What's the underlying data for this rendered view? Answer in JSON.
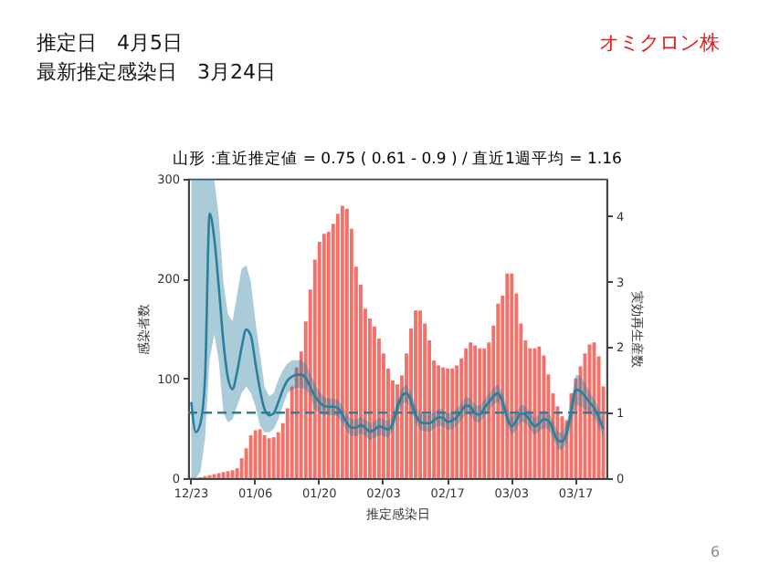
{
  "chart_data": {
    "type": "bar",
    "title": "山形 :直近推定値 = 0.75 ( 0.61 - 0.9 ) / 直近1週平均 = 1.16",
    "xlabel": "推定感染日",
    "ylabel": "感染者数",
    "y2label": "実効再生産数",
    "annotations": [
      "推定日　4月5日",
      "最新推定感染日　3月24日",
      "オミクロン株",
      "6"
    ],
    "categories": [
      "12/23",
      null,
      null,
      null,
      null,
      null,
      null,
      null,
      null,
      null,
      null,
      null,
      null,
      null,
      "01/06",
      null,
      null,
      null,
      null,
      null,
      null,
      null,
      null,
      null,
      null,
      null,
      null,
      null,
      "01/20",
      null,
      null,
      null,
      null,
      null,
      null,
      null,
      null,
      null,
      null,
      null,
      null,
      null,
      "02/03",
      null,
      null,
      null,
      null,
      null,
      null,
      null,
      null,
      null,
      null,
      null,
      null,
      null,
      "02/17",
      null,
      null,
      null,
      null,
      null,
      null,
      null,
      null,
      null,
      null,
      null,
      null,
      null,
      "03/03",
      null,
      null,
      null,
      null,
      null,
      null,
      null,
      null,
      null,
      null,
      null,
      null,
      null,
      "03/17",
      null,
      null,
      null,
      null,
      null,
      null
    ],
    "ylim": [
      0,
      300
    ],
    "yticks": [
      0,
      100,
      200,
      300
    ],
    "y2lim": [
      0,
      4.57
    ],
    "y2ticks": [
      0,
      1,
      2,
      3,
      4
    ],
    "series": [
      {
        "color": "#f4716a",
        "values": [
          0,
          0,
          1,
          2,
          3,
          4,
          5,
          6,
          7,
          8,
          10,
          20,
          30,
          43,
          48,
          49,
          43,
          40,
          41,
          46,
          55,
          70,
          92,
          111,
          127,
          157,
          189,
          219,
          237,
          245,
          247,
          255,
          265,
          273,
          270,
          250,
          212,
          194,
          170,
          160,
          152,
          140,
          125,
          110,
          98,
          94,
          103,
          125,
          150,
          168,
          168,
          155,
          138,
          118,
          113,
          111,
          110,
          110,
          113,
          120,
          130,
          136,
          133,
          130,
          130,
          136,
          153,
          175,
          183,
          205,
          205,
          185,
          155,
          138,
          130,
          130,
          132,
          123,
          104,
          85,
          72,
          62,
          58,
          85,
          100,
          112,
          125,
          134,
          136,
          122,
          92
        ]
      },
      {
        "type": "line",
        "axis": "y2",
        "color": "#2a7f9e",
        "values": [
          1.16,
          0.7,
          0.84,
          1.53,
          4.04,
          3.67,
          2.92,
          2.09,
          1.53,
          1.36,
          1.62,
          2.0,
          2.27,
          2.18,
          1.76,
          1.35,
          1.05,
          0.96,
          0.99,
          1.16,
          1.35,
          1.49,
          1.55,
          1.58,
          1.58,
          1.53,
          1.39,
          1.25,
          1.16,
          1.1,
          1.09,
          1.09,
          1.07,
          0.97,
          0.84,
          0.77,
          0.77,
          0.81,
          0.77,
          0.71,
          0.74,
          0.79,
          0.77,
          0.74,
          0.84,
          1.07,
          1.25,
          1.3,
          1.18,
          0.97,
          0.86,
          0.84,
          0.84,
          0.88,
          0.93,
          0.92,
          0.86,
          0.88,
          0.93,
          1.02,
          1.11,
          1.09,
          0.99,
          0.97,
          1.07,
          1.16,
          1.25,
          1.3,
          1.16,
          0.93,
          0.79,
          0.88,
          0.99,
          0.97,
          0.88,
          0.79,
          0.84,
          0.9,
          0.88,
          0.74,
          0.58,
          0.56,
          0.7,
          1.02,
          1.35,
          1.33,
          1.25,
          1.16,
          1.07,
          0.93,
          0.75
        ],
        "lower": [
          0,
          0,
          0.1,
          0.6,
          1.8,
          2.2,
          1.8,
          1.0,
          0.85,
          0.9,
          1.1,
          1.3,
          1.4,
          1.3,
          1.1,
          0.8,
          0.7,
          0.7,
          0.75,
          0.9,
          1.1,
          1.3,
          1.35,
          1.38,
          1.38,
          1.35,
          1.25,
          1.05,
          1.0,
          0.96,
          0.96,
          0.96,
          0.94,
          0.84,
          0.71,
          0.64,
          0.64,
          0.68,
          0.64,
          0.58,
          0.61,
          0.66,
          0.64,
          0.61,
          0.71,
          0.94,
          1.12,
          1.17,
          1.05,
          0.84,
          0.73,
          0.71,
          0.71,
          0.75,
          0.8,
          0.79,
          0.73,
          0.75,
          0.8,
          0.89,
          0.98,
          0.96,
          0.86,
          0.84,
          0.94,
          1.03,
          1.12,
          1.17,
          1.03,
          0.8,
          0.66,
          0.75,
          0.86,
          0.84,
          0.75,
          0.66,
          0.71,
          0.77,
          0.75,
          0.61,
          0.45,
          0.43,
          0.55,
          0.82,
          1.12,
          1.1,
          1.05,
          1.0,
          0.93,
          0.79,
          0.61
        ],
        "upper": [
          4.57,
          4.57,
          4.57,
          4.57,
          4.57,
          4.57,
          4.0,
          3.0,
          2.5,
          2.4,
          2.8,
          3.2,
          3.25,
          3.0,
          2.4,
          1.9,
          1.4,
          1.25,
          1.3,
          1.5,
          1.65,
          1.75,
          1.8,
          1.8,
          1.8,
          1.75,
          1.6,
          1.45,
          1.32,
          1.24,
          1.22,
          1.22,
          1.2,
          1.1,
          0.97,
          0.9,
          0.9,
          0.94,
          0.9,
          0.84,
          0.87,
          0.92,
          0.9,
          0.87,
          0.97,
          1.2,
          1.38,
          1.43,
          1.31,
          1.1,
          0.99,
          0.97,
          0.97,
          1.01,
          1.06,
          1.05,
          0.99,
          1.01,
          1.06,
          1.15,
          1.24,
          1.22,
          1.12,
          1.1,
          1.2,
          1.29,
          1.38,
          1.43,
          1.29,
          1.06,
          0.92,
          1.01,
          1.12,
          1.1,
          1.01,
          0.92,
          0.97,
          1.03,
          1.01,
          0.87,
          0.71,
          0.69,
          0.85,
          1.22,
          1.58,
          1.56,
          1.45,
          1.32,
          1.21,
          1.07,
          0.9
        ]
      }
    ],
    "ref_lines": [
      {
        "axis": "y2",
        "value": 1,
        "color": "#2a7f9e",
        "line_style": "dashed"
      }
    ]
  }
}
